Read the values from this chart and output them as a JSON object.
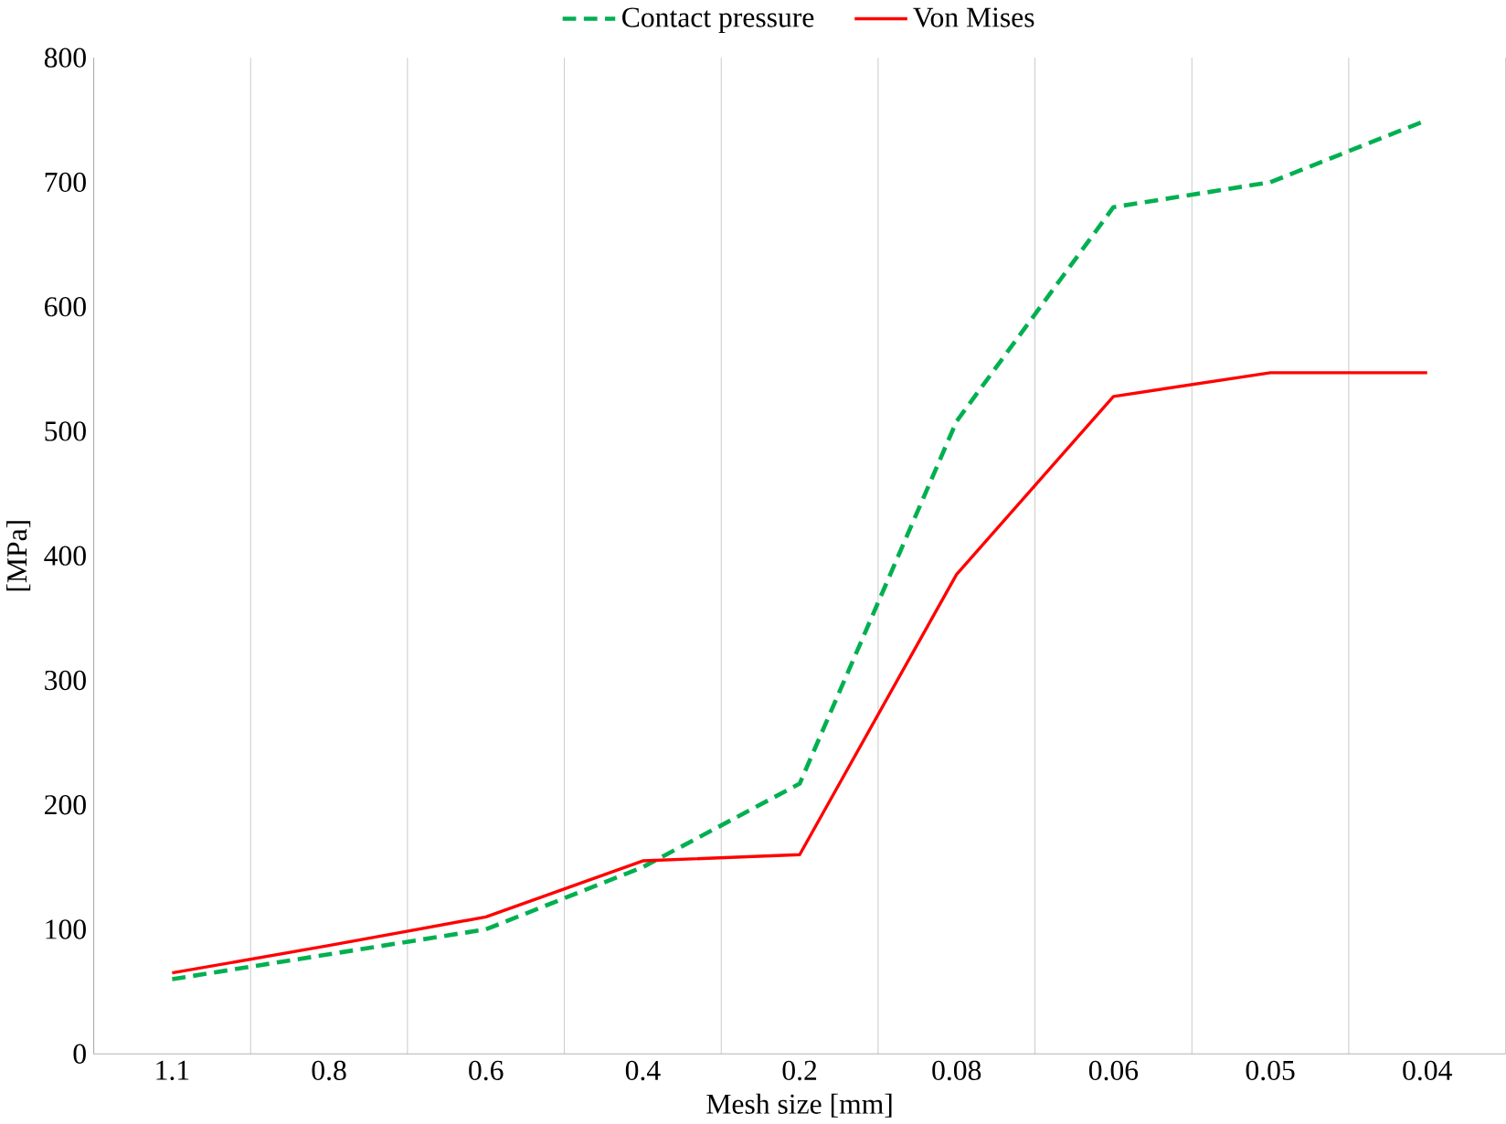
{
  "chart_data": {
    "type": "line",
    "xlabel": "Mesh size [mm]",
    "ylabel": "[MPa]",
    "categories": [
      "1.1",
      "0.8",
      "0.6",
      "0.4",
      "0.2",
      "0.08",
      "0.06",
      "0.05",
      "0.04"
    ],
    "series": [
      {
        "name": "Contact pressure",
        "color": "#00b050",
        "line_style": "dashed",
        "values": [
          60,
          80,
          100,
          150,
          217,
          508,
          680,
          700,
          750
        ]
      },
      {
        "name": "Von Mises",
        "color": "#ff0000",
        "line_style": "solid",
        "values": [
          65,
          87,
          110,
          155,
          160,
          385,
          528,
          547,
          547
        ]
      }
    ],
    "ylim": [
      0,
      800
    ],
    "yticks": [
      0,
      100,
      200,
      300,
      400,
      500,
      600,
      700,
      800
    ],
    "grid": "x",
    "legend": "top",
    "marker": "none"
  }
}
